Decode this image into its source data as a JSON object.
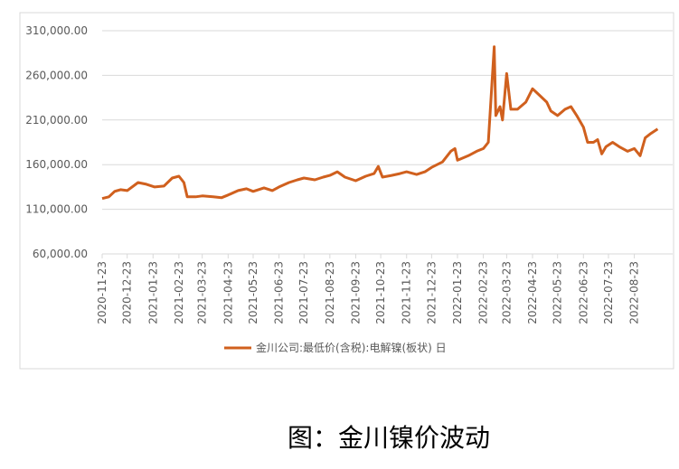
{
  "chart_data": {
    "type": "line",
    "x": [
      "2020-11-23",
      "2020-12-01",
      "2020-12-08",
      "2020-12-15",
      "2020-12-23",
      "2021-01-05",
      "2021-01-15",
      "2021-01-25",
      "2021-02-05",
      "2021-02-15",
      "2021-02-23",
      "2021-03-01",
      "2021-03-05",
      "2021-03-15",
      "2021-03-23",
      "2021-04-05",
      "2021-04-15",
      "2021-04-23",
      "2021-05-05",
      "2021-05-15",
      "2021-05-23",
      "2021-06-05",
      "2021-06-15",
      "2021-06-23",
      "2021-07-05",
      "2021-07-15",
      "2021-07-23",
      "2021-08-05",
      "2021-08-15",
      "2021-08-23",
      "2021-09-01",
      "2021-09-10",
      "2021-09-23",
      "2021-10-05",
      "2021-10-15",
      "2021-10-20",
      "2021-10-25",
      "2021-11-05",
      "2021-11-15",
      "2021-11-23",
      "2021-12-05",
      "2021-12-15",
      "2021-12-23",
      "2022-01-05",
      "2022-01-15",
      "2022-01-20",
      "2022-01-23",
      "2022-02-05",
      "2022-02-15",
      "2022-02-23",
      "2022-03-01",
      "2022-03-08",
      "2022-03-10",
      "2022-03-15",
      "2022-03-18",
      "2022-03-23",
      "2022-03-28",
      "2022-04-05",
      "2022-04-15",
      "2022-04-23",
      "2022-05-01",
      "2022-05-10",
      "2022-05-15",
      "2022-05-23",
      "2022-06-01",
      "2022-06-08",
      "2022-06-15",
      "2022-06-23",
      "2022-06-28",
      "2022-07-05",
      "2022-07-10",
      "2022-07-15",
      "2022-07-20",
      "2022-07-28",
      "2022-08-05",
      "2022-08-15",
      "2022-08-23",
      "2022-08-30",
      "2022-09-05",
      "2022-09-12",
      "2022-09-20"
    ],
    "series": [
      {
        "name": "金川公司:最低价(含税):电解镍(板状) 日",
        "color": "#d0601e",
        "values": [
          122000,
          124000,
          130000,
          132000,
          131000,
          140000,
          138000,
          135000,
          136000,
          145000,
          147000,
          140000,
          124000,
          124000,
          125000,
          124000,
          123000,
          126000,
          131000,
          133000,
          130000,
          134000,
          131000,
          135000,
          140000,
          143000,
          145000,
          143000,
          146000,
          148000,
          152000,
          146000,
          142000,
          147000,
          150000,
          158000,
          146000,
          148000,
          150000,
          152000,
          149000,
          152000,
          157000,
          163000,
          175000,
          178000,
          165000,
          170000,
          175000,
          178000,
          185000,
          292000,
          215000,
          225000,
          210000,
          262000,
          222000,
          222000,
          230000,
          245000,
          238000,
          230000,
          220000,
          215000,
          222000,
          225000,
          215000,
          202000,
          185000,
          185000,
          188000,
          172000,
          180000,
          185000,
          180000,
          175000,
          178000,
          170000,
          190000,
          195000,
          200000
        ]
      }
    ],
    "xlim": [
      "2020-11-23",
      "2022-10-08"
    ],
    "xticks": [
      "2020-11-23",
      "2020-12-23",
      "2021-01-23",
      "2021-02-23",
      "2021-03-23",
      "2021-04-23",
      "2021-05-23",
      "2021-06-23",
      "2021-07-23",
      "2021-08-23",
      "2021-09-23",
      "2021-10-23",
      "2021-11-23",
      "2021-12-23",
      "2022-01-23",
      "2022-02-23",
      "2022-03-23",
      "2022-04-23",
      "2022-05-23",
      "2022-06-23",
      "2022-07-23",
      "2022-08-23"
    ],
    "ylim": [
      60000,
      310000
    ],
    "yticks": [
      {
        "value": 60000,
        "label": "60,000.00"
      },
      {
        "value": 110000,
        "label": "110,000.00"
      },
      {
        "value": 160000,
        "label": "160,000.00"
      },
      {
        "value": 210000,
        "label": "210,000.00"
      },
      {
        "value": 260000,
        "label": "260,000.00"
      },
      {
        "value": 310000,
        "label": "310,000.00"
      }
    ],
    "grid": true,
    "legend": "bottom"
  },
  "caption": "图：金川镍价波动"
}
